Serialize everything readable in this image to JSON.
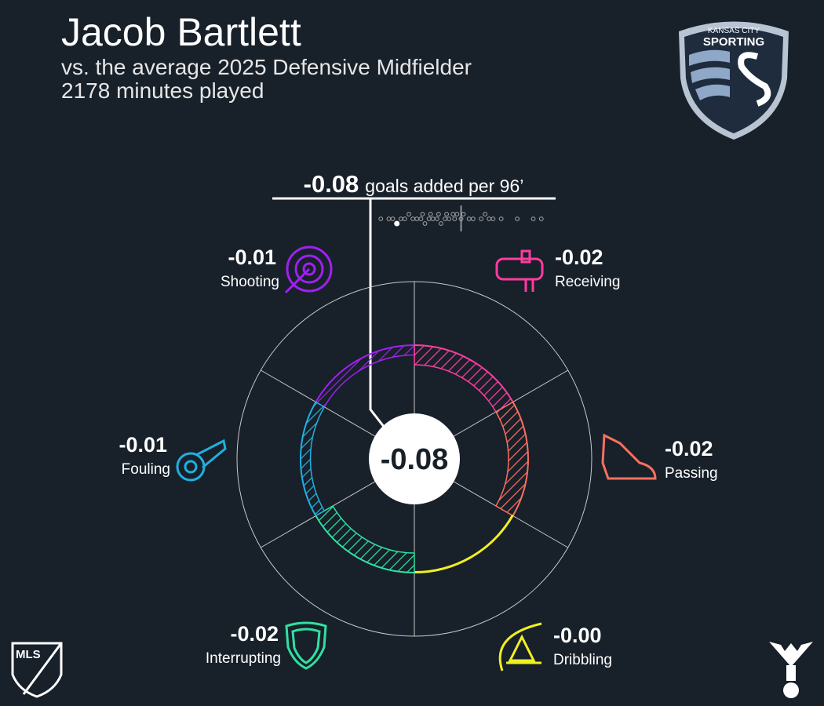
{
  "chart_data": {
    "type": "radial",
    "title": "Jacob Bartlett",
    "subtitle": [
      "vs. the average 2025 Defensive Midfielder",
      "2178 minutes played"
    ],
    "total": -0.08,
    "total_label": "goals added per 96’",
    "categories": [
      "Shooting",
      "Receiving",
      "Passing",
      "Dribbling",
      "Interrupting",
      "Fouling"
    ],
    "values": [
      -0.01,
      -0.02,
      -0.02,
      -0.001,
      -0.02,
      -0.01
    ],
    "value_labels": [
      "-0.01",
      "-0.02",
      "-0.02",
      "-0.00",
      "-0.02",
      "-0.01"
    ],
    "colors": [
      "#a020f0",
      "#ff3ca0",
      "#f87060",
      "#f0f020",
      "#30e0a0",
      "#20b0e0"
    ],
    "swarm": {
      "xlim": [
        -0.11,
        0.11
      ],
      "average": 0,
      "values": [
        -0.1,
        -0.09,
        -0.085,
        -0.075,
        -0.07,
        -0.065,
        -0.06,
        -0.055,
        -0.05,
        -0.048,
        -0.045,
        -0.04,
        -0.038,
        -0.035,
        -0.03,
        -0.028,
        -0.025,
        -0.02,
        -0.018,
        -0.015,
        -0.01,
        -0.008,
        -0.005,
        0,
        0.003,
        0.01,
        0.015,
        0.025,
        0.03,
        0.035,
        0.04,
        0.05,
        0.07,
        0.09,
        0.1
      ]
    },
    "logos": {
      "club_city": "KANSAS CITY",
      "club": "SPORTING",
      "league": "MLS"
    }
  }
}
